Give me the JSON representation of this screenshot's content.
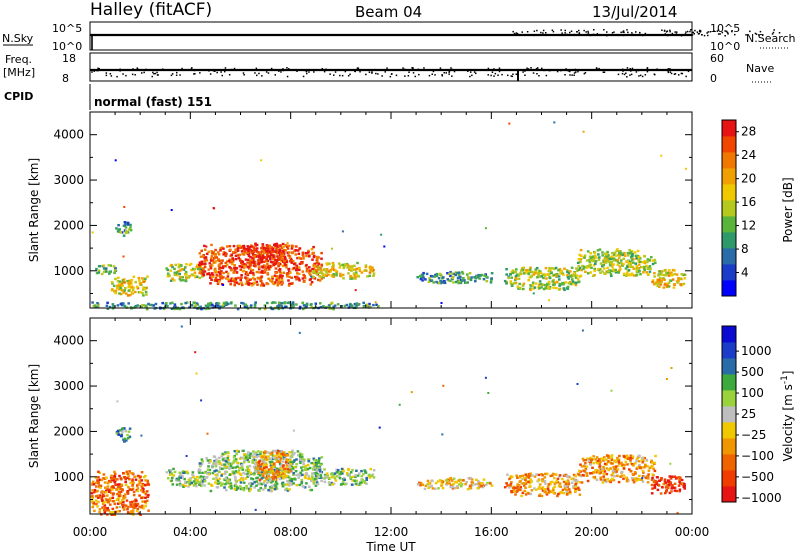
{
  "header": {
    "station": "Halley (fitACF)",
    "beam": "Beam 04",
    "date": "13/Jul/2014"
  },
  "top_panels": {
    "nsky_label": "N.Sky",
    "nsky_ticks": [
      "10^5",
      "10^0"
    ],
    "nsearch_label": "N.Search",
    "nsearch_ticks": [
      "10^5",
      "10^0"
    ],
    "freq_label": "Freq.",
    "freq_unit": "[MHz]",
    "freq_ticks": [
      "18",
      "8"
    ],
    "nave_label": "Nave",
    "nave_ticks": [
      "60",
      "0"
    ],
    "cpid_label": "CPID",
    "cpid_text": "normal (fast) 151"
  },
  "chart_data": [
    {
      "type": "heatmap",
      "title": "",
      "xlabel": "Time UT",
      "ylabel": "Slant Range [km]",
      "x_ticks": [
        "00:00",
        "04:00",
        "08:00",
        "12:00",
        "16:00",
        "20:00",
        "00:00"
      ],
      "xlim_hours": [
        0,
        24
      ],
      "y_ticks": [
        1000,
        2000,
        3000,
        4000
      ],
      "ylim": [
        180,
        4500
      ],
      "colorbar": {
        "label": "Power [dB]",
        "ticks": [
          "4",
          "8",
          "12",
          "16",
          "20",
          "24",
          "28"
        ],
        "range": [
          0,
          30
        ],
        "colors": [
          "#0000ff",
          "#1a3cc8",
          "#2a6ca8",
          "#2e9a6a",
          "#5ab43c",
          "#b4c81e",
          "#f0c800",
          "#f0a000",
          "#f07800",
          "#f04600",
          "#e61414"
        ]
      },
      "echo_regions": [
        {
          "t0": 0.0,
          "t1": 11.5,
          "r0": 180,
          "r1": 330,
          "level": 3
        },
        {
          "t0": 0.2,
          "t1": 1.0,
          "r0": 950,
          "r1": 1150,
          "level": 4
        },
        {
          "t0": 0.8,
          "t1": 2.3,
          "r0": 480,
          "r1": 900,
          "level": 6
        },
        {
          "t0": 1.0,
          "t1": 1.6,
          "r0": 1800,
          "r1": 2100,
          "level": 3
        },
        {
          "t0": 3.0,
          "t1": 4.5,
          "r0": 800,
          "r1": 1200,
          "level": 5
        },
        {
          "t0": 4.3,
          "t1": 9.2,
          "r0": 700,
          "r1": 1600,
          "level": 9
        },
        {
          "t0": 6.2,
          "t1": 7.8,
          "r0": 1100,
          "r1": 1650,
          "level": 10
        },
        {
          "t0": 8.8,
          "t1": 11.3,
          "r0": 850,
          "r1": 1200,
          "level": 6
        },
        {
          "t0": 13.0,
          "t1": 16.0,
          "r0": 750,
          "r1": 1000,
          "level": 3
        },
        {
          "t0": 16.5,
          "t1": 19.5,
          "r0": 600,
          "r1": 1100,
          "level": 5
        },
        {
          "t0": 19.4,
          "t1": 22.5,
          "r0": 900,
          "r1": 1500,
          "level": 5
        },
        {
          "t0": 22.3,
          "t1": 23.7,
          "r0": 650,
          "r1": 1050,
          "level": 6
        }
      ]
    },
    {
      "type": "heatmap",
      "title": "",
      "xlabel": "Time UT",
      "ylabel": "Slant Range [km]",
      "x_ticks": [
        "00:00",
        "04:00",
        "08:00",
        "12:00",
        "16:00",
        "20:00",
        "00:00"
      ],
      "xlim_hours": [
        0,
        24
      ],
      "y_ticks": [
        1000,
        2000,
        3000,
        4000
      ],
      "ylim": [
        180,
        4500
      ],
      "colorbar": {
        "label": "Velocity [m s^-1]",
        "ticks": [
          "1000",
          "500",
          "100",
          "25",
          "−25",
          "−100",
          "−500",
          "−1000"
        ],
        "range": [
          -1200,
          1200
        ],
        "colors": [
          "#e61414",
          "#f03c00",
          "#f06400",
          "#f09600",
          "#f0c800",
          "#bebebe",
          "#9ad23c",
          "#3caa3c",
          "#2a6ca8",
          "#1a3cc8",
          "#0a0ad2"
        ]
      },
      "echo_regions": [
        {
          "t0": 0.0,
          "t1": 2.3,
          "r0": 180,
          "r1": 1150,
          "level": 2
        },
        {
          "t0": 1.0,
          "t1": 1.6,
          "r0": 1800,
          "r1": 2100,
          "level": 7
        },
        {
          "t0": 3.0,
          "t1": 4.5,
          "r0": 800,
          "r1": 1200,
          "level": 6
        },
        {
          "t0": 4.3,
          "t1": 9.2,
          "r0": 700,
          "r1": 1600,
          "level": 6
        },
        {
          "t0": 6.5,
          "t1": 8.0,
          "r0": 950,
          "r1": 1600,
          "level": 3
        },
        {
          "t0": 8.8,
          "t1": 11.3,
          "r0": 850,
          "r1": 1200,
          "level": 6
        },
        {
          "t0": 13.0,
          "t1": 16.0,
          "r0": 750,
          "r1": 1000,
          "level": 4
        },
        {
          "t0": 16.5,
          "t1": 19.5,
          "r0": 600,
          "r1": 1100,
          "level": 3
        },
        {
          "t0": 19.4,
          "t1": 22.5,
          "r0": 900,
          "r1": 1500,
          "level": 3
        },
        {
          "t0": 22.3,
          "t1": 23.7,
          "r0": 650,
          "r1": 1050,
          "level": 1
        }
      ]
    }
  ]
}
